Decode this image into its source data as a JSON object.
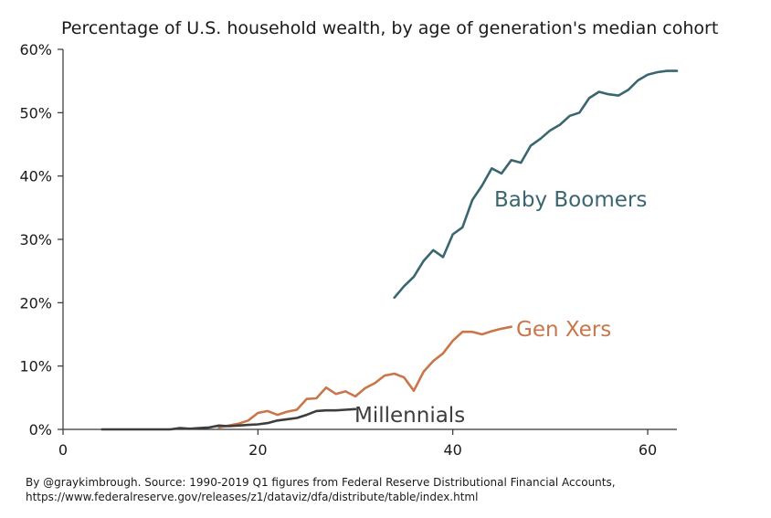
{
  "title": "Percentage of U.S. household wealth, by age of generation's median cohort",
  "source_line1": "By @graykimbrough. Source: 1990-2019 Q1 figures from Federal Reserve Distributional Financial Accounts,",
  "source_line2": "https://www.federalreserve.gov/releases/z1/dataviz/dfa/distribute/table/index.html",
  "chart_data": {
    "type": "line",
    "title": "Percentage of U.S. household wealth, by age of generation's median cohort",
    "xlabel": "",
    "ylabel": "",
    "xlim": [
      0,
      63
    ],
    "ylim": [
      0,
      60
    ],
    "x_ticks": [
      0,
      20,
      40,
      60
    ],
    "y_ticks": [
      0,
      10,
      20,
      30,
      40,
      50,
      60
    ],
    "y_tick_labels": [
      "0%",
      "10%",
      "20%",
      "30%",
      "40%",
      "50%",
      "60%"
    ],
    "grid": false,
    "legend": "none (direct series labels)",
    "series": [
      {
        "name": "Baby Boomers",
        "color": "#3a6670",
        "x": [
          34,
          35,
          36,
          37,
          38,
          39,
          40,
          41,
          42,
          43,
          44,
          45,
          46,
          47,
          48,
          49,
          50,
          51,
          52,
          53,
          54,
          55,
          56,
          57,
          58,
          59,
          60,
          61,
          62,
          63
        ],
        "y": [
          20.8,
          22.6,
          24.1,
          26.6,
          28.3,
          27.2,
          30.8,
          31.9,
          36.2,
          38.5,
          41.2,
          40.4,
          42.5,
          42.1,
          44.8,
          45.9,
          47.2,
          48.1,
          49.5,
          50.0,
          52.3,
          53.3,
          52.9,
          52.7,
          53.6,
          55.1,
          56.0,
          56.4,
          56.6,
          56.6
        ]
      },
      {
        "name": "Gen Xers",
        "color": "#c8764a",
        "x": [
          16,
          17,
          18,
          19,
          20,
          21,
          22,
          23,
          24,
          25,
          26,
          27,
          28,
          29,
          30,
          31,
          32,
          33,
          34,
          35,
          36,
          37,
          38,
          39,
          40,
          41,
          42,
          43,
          44,
          45,
          46
        ],
        "y": [
          0.3,
          0.6,
          0.9,
          1.4,
          2.6,
          2.9,
          2.3,
          2.8,
          3.1,
          4.8,
          4.9,
          6.6,
          5.6,
          6.0,
          5.2,
          6.5,
          7.3,
          8.5,
          8.8,
          8.2,
          6.1,
          9.1,
          10.8,
          12.0,
          14.0,
          15.4,
          15.4,
          15.0,
          15.5,
          15.9,
          16.2
        ]
      },
      {
        "name": "Millennials",
        "color": "#3d3d3d",
        "x": [
          4,
          5,
          6,
          7,
          8,
          9,
          10,
          11,
          12,
          13,
          14,
          15,
          16,
          17,
          18,
          19,
          20,
          21,
          22,
          23,
          24,
          25,
          26,
          27,
          28,
          29,
          30
        ],
        "y": [
          0,
          0,
          0,
          0,
          0,
          0,
          0,
          0,
          0.2,
          0.1,
          0.2,
          0.3,
          0.6,
          0.5,
          0.6,
          0.7,
          0.8,
          1.0,
          1.4,
          1.6,
          1.8,
          2.3,
          2.9,
          3.0,
          3.0,
          3.1,
          3.2
        ]
      }
    ]
  }
}
